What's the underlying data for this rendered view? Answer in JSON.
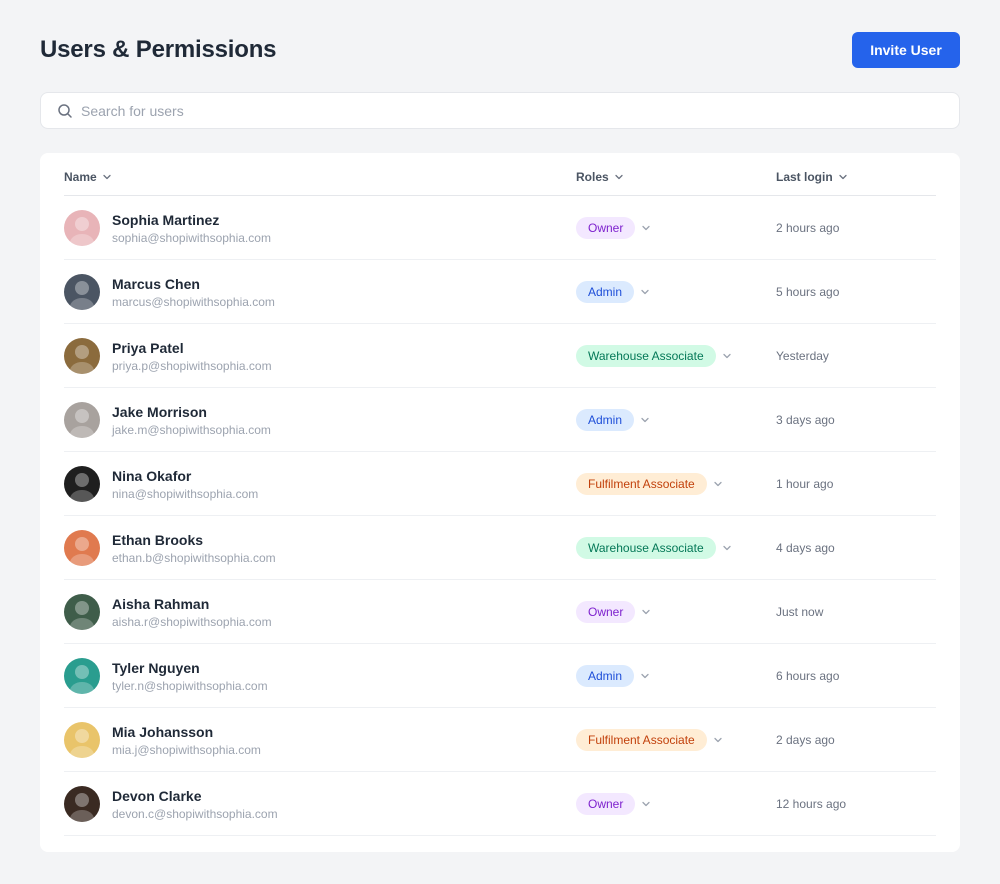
{
  "header": {
    "title": "Users & Permissions",
    "invite_label": "Invite User"
  },
  "search": {
    "placeholder": "Search for users",
    "value": ""
  },
  "table": {
    "columns": {
      "name": "Name",
      "roles": "Roles",
      "last_login": "Last login"
    },
    "rows": [
      {
        "name": "Sophia Martinez",
        "email": "sophia@shopiwithsophia.com",
        "role": "Owner",
        "role_type": "owner",
        "last_login": "2 hours ago",
        "avatar_color": "#e8b4b8"
      },
      {
        "name": "Marcus Chen",
        "email": "marcus@shopiwithsophia.com",
        "role": "Admin",
        "role_type": "admin",
        "last_login": "5 hours ago",
        "avatar_color": "#4b5563"
      },
      {
        "name": "Priya Patel",
        "email": "priya.p@shopiwithsophia.com",
        "role": "Warehouse Associate",
        "role_type": "warehouse",
        "last_login": "Yesterday",
        "avatar_color": "#8b6b3d"
      },
      {
        "name": "Jake Morrison",
        "email": "jake.m@shopiwithsophia.com",
        "role": "Admin",
        "role_type": "admin",
        "last_login": "3 days ago",
        "avatar_color": "#a8a29e"
      },
      {
        "name": "Nina Okafor",
        "email": "nina@shopiwithsophia.com",
        "role": "Fulfilment Associate",
        "role_type": "fulfil",
        "last_login": "1 hour ago",
        "avatar_color": "#1f1f1f"
      },
      {
        "name": "Ethan Brooks",
        "email": "ethan.b@shopiwithsophia.com",
        "role": "Warehouse Associate",
        "role_type": "warehouse",
        "last_login": "4 days ago",
        "avatar_color": "#e07a4f"
      },
      {
        "name": "Aisha Rahman",
        "email": "aisha.r@shopiwithsophia.com",
        "role": "Owner",
        "role_type": "owner",
        "last_login": "Just now",
        "avatar_color": "#3f5d4a"
      },
      {
        "name": "Tyler Nguyen",
        "email": "tyler.n@shopiwithsophia.com",
        "role": "Admin",
        "role_type": "admin",
        "last_login": "6 hours ago",
        "avatar_color": "#2a9d8f"
      },
      {
        "name": "Mia Johansson",
        "email": "mia.j@shopiwithsophia.com",
        "role": "Fulfilment Associate",
        "role_type": "fulfil",
        "last_login": "2 days ago",
        "avatar_color": "#e9c46a"
      },
      {
        "name": "Devon Clarke",
        "email": "devon.c@shopiwithsophia.com",
        "role": "Owner",
        "role_type": "owner",
        "last_login": "12 hours ago",
        "avatar_color": "#3a2a22"
      }
    ]
  },
  "colors": {
    "accent": "#2563eb",
    "background": "#f3f4f6",
    "owner": "#7e22ce",
    "admin": "#1d4ed8",
    "warehouse": "#047857",
    "fulfilment": "#c2410c"
  },
  "icons": {
    "search": "search-icon",
    "sort": "chevron-down-icon",
    "role_dropdown": "chevron-down-icon"
  }
}
